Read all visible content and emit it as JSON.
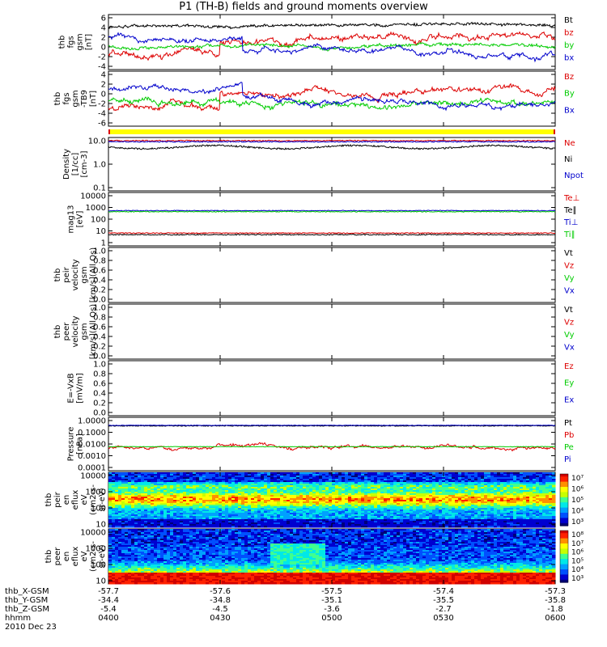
{
  "title": "P1 (TH-B) fields and ground moments overview",
  "colors": {
    "black": "#000000",
    "red": "#dd0000",
    "green": "#00cc00",
    "blue": "#0000cc",
    "yellow": "#ffff00"
  },
  "chart_data": [
    {
      "type": "line",
      "ylabel": [
        "thb",
        "fgs",
        "gsm",
        "[nT]"
      ],
      "ylim": [
        -6,
        6
      ],
      "yticks": [
        "6",
        "4",
        "2",
        "0",
        "-2",
        "-4"
      ],
      "series": [
        {
          "name": "Bt",
          "color": "black"
        },
        {
          "name": "bz",
          "color": "red"
        },
        {
          "name": "by",
          "color": "green"
        },
        {
          "name": "bx",
          "color": "blue"
        }
      ]
    },
    {
      "type": "line",
      "ylabel": [
        "thb",
        "fgs",
        "gsm",
        "-TB9",
        "[nT]"
      ],
      "ylim": [
        -7,
        5
      ],
      "yticks": [
        "4",
        "2",
        "0",
        "-2",
        "-4",
        "-6"
      ],
      "series": [
        {
          "name": "Bz",
          "color": "red"
        },
        {
          "name": "By",
          "color": "green"
        },
        {
          "name": "Bx",
          "color": "blue"
        }
      ]
    },
    {
      "type": "line",
      "scale": "log",
      "ylabel": [
        "Density",
        "[1/cc]",
        "[cm-3]"
      ],
      "ylim": [
        0.1,
        15
      ],
      "yticks": [
        "10.0",
        "1.0",
        "0.1"
      ],
      "series": [
        {
          "name": "Ne",
          "color": "red"
        },
        {
          "name": "Ni",
          "color": "black"
        },
        {
          "name": "Npot",
          "color": "blue"
        }
      ]
    },
    {
      "type": "line",
      "scale": "log",
      "ylabel": [
        "mag13",
        "[eV]"
      ],
      "ylim": [
        1,
        10000
      ],
      "yticks": [
        "10000",
        "1000",
        "100",
        "10",
        "1"
      ],
      "series": [
        {
          "name": "Te⊥",
          "color": "red"
        },
        {
          "name": "Te∥",
          "color": "black"
        },
        {
          "name": "Ti⊥",
          "color": "blue"
        },
        {
          "name": "Ti∥",
          "color": "green"
        }
      ]
    },
    {
      "type": "line",
      "ylabel": [
        "thb",
        "peir",
        "velocity",
        "gsm",
        "[km/s](All Qs)"
      ],
      "ylim": [
        0,
        1
      ],
      "yticks": [
        "1.0",
        "0.8",
        "0.6",
        "0.4",
        "0.2",
        "0.0"
      ],
      "series": [
        {
          "name": "Vt",
          "color": "black"
        },
        {
          "name": "Vz",
          "color": "red"
        },
        {
          "name": "Vy",
          "color": "green"
        },
        {
          "name": "Vx",
          "color": "blue"
        }
      ]
    },
    {
      "type": "line",
      "ylabel": [
        "thb",
        "peer",
        "velocity",
        "gsm",
        "[km/s](All Qs)"
      ],
      "ylim": [
        0,
        1
      ],
      "yticks": [
        "1.0",
        "0.8",
        "0.6",
        "0.4",
        "0.2",
        "0.0"
      ],
      "series": [
        {
          "name": "Vt",
          "color": "black"
        },
        {
          "name": "Vz",
          "color": "red"
        },
        {
          "name": "Vy",
          "color": "green"
        },
        {
          "name": "Vx",
          "color": "blue"
        }
      ]
    },
    {
      "type": "line",
      "ylabel": [
        "E=-VxB",
        "[mV/m]"
      ],
      "ylim": [
        0,
        1
      ],
      "yticks": [
        "1.0",
        "0.8",
        "0.6",
        "0.4",
        "0.2",
        "0.0"
      ],
      "series": [
        {
          "name": "Ez",
          "color": "red"
        },
        {
          "name": "Ey",
          "color": "green"
        },
        {
          "name": "Ex",
          "color": "blue"
        }
      ]
    },
    {
      "type": "line",
      "scale": "log",
      "ylabel": [
        "Pressure",
        "[nPa]"
      ],
      "ylim": [
        0.0001,
        1
      ],
      "yticks": [
        "1.0000",
        "0.1000",
        "0.0100",
        "0.0010",
        "0.0001"
      ],
      "series": [
        {
          "name": "Pt",
          "color": "black"
        },
        {
          "name": "Pb",
          "color": "red"
        },
        {
          "name": "Pe",
          "color": "green"
        },
        {
          "name": "Pi",
          "color": "blue"
        }
      ]
    },
    {
      "type": "heatmap",
      "ylabel": [
        "thb",
        "peir",
        "en",
        "eflux",
        "eV",
        "(cm2-s-",
        "sr-eV)"
      ],
      "ylim": [
        5,
        30000
      ],
      "yticks": [
        "10000",
        "1000",
        "100",
        "10"
      ],
      "colorbar_ticks": [
        "10⁷",
        "10⁶",
        "10⁵",
        "10⁴",
        "10³"
      ]
    },
    {
      "type": "heatmap",
      "ylabel": [
        "thb",
        "peer",
        "en",
        "eflux",
        "eV",
        "(cm2-s-",
        "sr-eV)"
      ],
      "ylim": [
        5,
        30000
      ],
      "yticks": [
        "10000",
        "1000",
        "100",
        "10"
      ],
      "colorbar_ticks": [
        "10⁸",
        "10⁷",
        "10⁶",
        "10⁵",
        "10⁴",
        "10³"
      ]
    }
  ],
  "x_axis": {
    "rows": [
      {
        "label": "thb_X-GSM",
        "values": [
          "-57.7",
          "-57.6",
          "-57.5",
          "-57.4",
          "-57.3"
        ]
      },
      {
        "label": "thb_Y-GSM",
        "values": [
          "-34.4",
          "-34.8",
          "-35.1",
          "-35.5",
          "-35.8"
        ]
      },
      {
        "label": "thb_Z-GSM",
        "values": [
          "-5.4",
          "-4.5",
          "-3.6",
          "-2.7",
          "-1.8"
        ]
      },
      {
        "label": "hhmm",
        "values": [
          "0400",
          "0430",
          "0500",
          "0530",
          "0600"
        ]
      }
    ],
    "date": "2010 Dec 23"
  }
}
